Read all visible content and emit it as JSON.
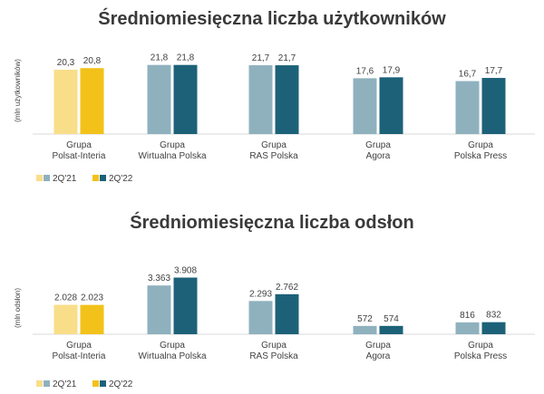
{
  "chart_data": [
    {
      "type": "bar",
      "title": "Średniomiesięczna liczba użytkowników",
      "ylabel": "(mln użytkowników)",
      "xlabel": "",
      "categories": [
        [
          "Grupa",
          "Polsat-Interia"
        ],
        [
          "Grupa",
          "Wirtualna Polska"
        ],
        [
          "Grupa",
          "RAS Polska"
        ],
        [
          "Grupa",
          "Agora"
        ],
        [
          "Grupa",
          "Polska Press"
        ]
      ],
      "series": [
        {
          "name": "2Q'21",
          "values": [
            20.3,
            21.8,
            21.7,
            17.6,
            16.7
          ],
          "labels": [
            "20,3",
            "21,8",
            "21,7",
            "17,6",
            "16,7"
          ]
        },
        {
          "name": "2Q'22",
          "values": [
            20.8,
            21.8,
            21.7,
            17.9,
            17.7
          ],
          "labels": [
            "20,8",
            "21,8",
            "21,7",
            "17,9",
            "17,7"
          ]
        }
      ],
      "ylim": [
        0,
        30
      ],
      "grid": false,
      "legend": "bottom-left"
    },
    {
      "type": "bar",
      "title": "Średniomiesięczna liczba odsłon",
      "ylabel": "(mln odsłon)",
      "xlabel": "",
      "categories": [
        [
          "Grupa",
          "Polsat-Interia"
        ],
        [
          "Grupa",
          "Wirtualna Polska"
        ],
        [
          "Grupa",
          "RAS Polska"
        ],
        [
          "Grupa",
          "Agora"
        ],
        [
          "Grupa",
          "Polska Press"
        ]
      ],
      "series": [
        {
          "name": "2Q'21",
          "values": [
            2028,
            3363,
            2293,
            572,
            816
          ],
          "labels": [
            "2.028",
            "3.363",
            "2.293",
            "572",
            "816"
          ]
        },
        {
          "name": "2Q'22",
          "values": [
            2023,
            3908,
            2762,
            574,
            832
          ],
          "labels": [
            "2.023",
            "3.908",
            "2.762",
            "574",
            "832"
          ]
        }
      ],
      "ylim": [
        0,
        4750
      ],
      "grid": false,
      "legend": "bottom-left"
    }
  ],
  "colors": {
    "polsat_2q21": "#f9de8a",
    "polsat_2q22": "#f2c21a",
    "other_2q21": "#8fb1be",
    "other_2q22": "#1d6179",
    "axis": "#d9d9d9"
  }
}
